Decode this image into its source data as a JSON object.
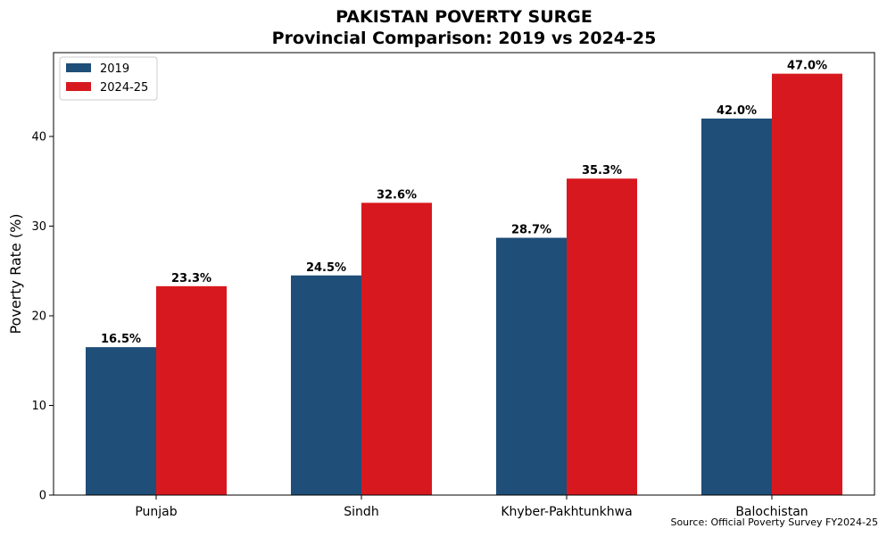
{
  "chart_data": {
    "type": "bar",
    "title": "PAKISTAN POVERTY SURGE",
    "subtitle": "Provincial Comparison: 2019 vs 2024-25",
    "xlabel": "",
    "ylabel": "Poverty Rate (%)",
    "categories": [
      "Punjab",
      "Sindh",
      "Khyber-Pakhtunkhwa",
      "Balochistan"
    ],
    "series": [
      {
        "name": "2019",
        "color": "#1f4e79",
        "values": [
          16.5,
          24.5,
          28.7,
          42.0
        ],
        "labels": [
          "16.5%",
          "24.5%",
          "28.7%",
          "42.0%"
        ]
      },
      {
        "name": "2024-25",
        "color": "#d7191f",
        "values": [
          23.3,
          32.6,
          35.3,
          47.0
        ],
        "labels": [
          "23.3%",
          "32.6%",
          "35.3%",
          "47.0%"
        ]
      }
    ],
    "ylim": [
      0,
      49.35
    ],
    "yticks": [
      0,
      10,
      20,
      30,
      40
    ],
    "ytick_labels": [
      "0",
      "10",
      "20",
      "30",
      "40"
    ],
    "grid": false,
    "legend_position": "top-left",
    "source": "Source: Official Poverty Survey FY2024-25"
  }
}
